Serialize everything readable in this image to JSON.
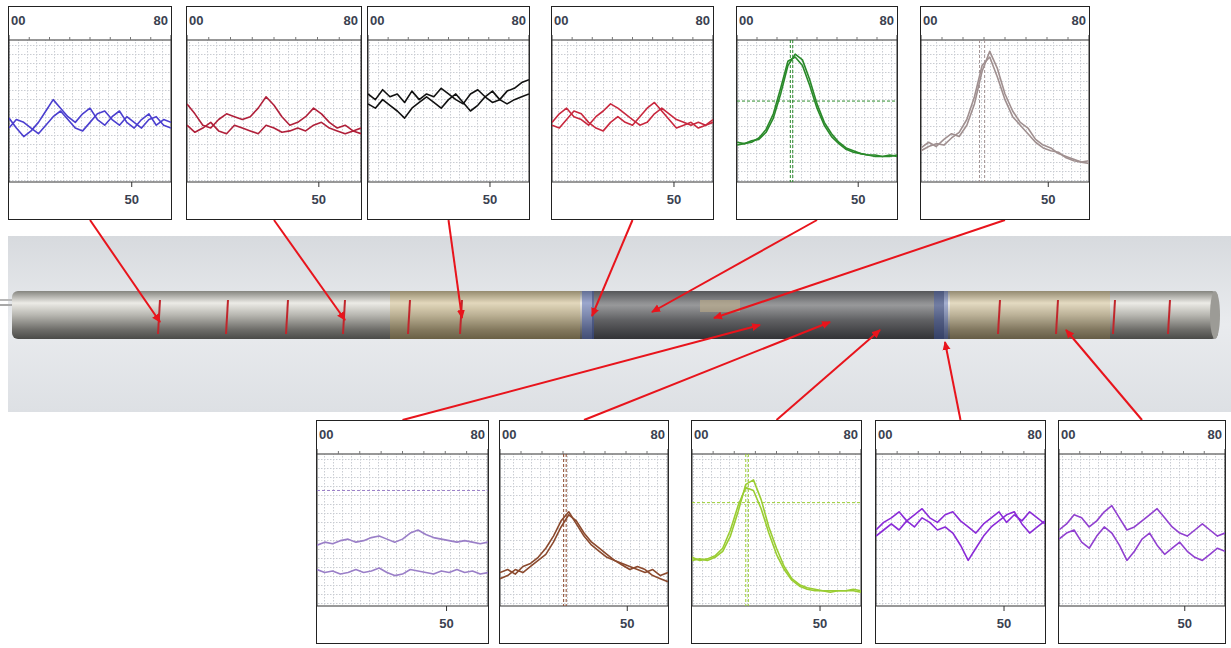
{
  "chart_data": [
    {
      "type": "line",
      "x": [
        0,
        3,
        6,
        9,
        12,
        15,
        18,
        21,
        24,
        27,
        30,
        33,
        36,
        39,
        42,
        45,
        48,
        51,
        54,
        57,
        60,
        63,
        66
      ],
      "xlim": [
        0,
        66
      ],
      "xticks": [
        50
      ],
      "x2lim": [
        0,
        80
      ],
      "x2ticks": [
        {
          "value": 0,
          "label": "00"
        },
        {
          "value": 80,
          "label": "80"
        }
      ],
      "ylim": [
        0,
        100
      ],
      "grid": true,
      "tick_labels": "x",
      "series": [
        {
          "color": "#4b3fcf",
          "values": [
            45,
            38,
            32,
            36,
            42,
            50,
            58,
            52,
            46,
            42,
            48,
            52,
            44,
            40,
            46,
            50,
            42,
            38,
            44,
            48,
            40,
            44,
            42
          ]
        },
        {
          "color": "#4b3fcf",
          "values": [
            38,
            44,
            42,
            38,
            34,
            40,
            46,
            50,
            44,
            38,
            36,
            42,
            48,
            50,
            44,
            40,
            46,
            42,
            38,
            44,
            46,
            40,
            38
          ]
        }
      ]
    },
    {
      "type": "line",
      "x": [
        0,
        3,
        6,
        9,
        12,
        15,
        18,
        21,
        24,
        27,
        30,
        33,
        36,
        39,
        42,
        45,
        48,
        51,
        54,
        57,
        60,
        63,
        66
      ],
      "xlim": [
        0,
        66
      ],
      "xticks": [
        50
      ],
      "x2lim": [
        0,
        80
      ],
      "x2ticks": [
        {
          "value": 0,
          "label": "00"
        },
        {
          "value": 80,
          "label": "80"
        }
      ],
      "ylim": [
        0,
        100
      ],
      "grid": true,
      "tick_labels": "x",
      "series": [
        {
          "color": "#b0203a",
          "values": [
            55,
            48,
            40,
            38,
            44,
            48,
            46,
            44,
            46,
            52,
            60,
            54,
            46,
            40,
            42,
            46,
            52,
            48,
            42,
            38,
            40,
            36,
            34
          ]
        },
        {
          "color": "#b0203a",
          "values": [
            40,
            35,
            38,
            42,
            36,
            34,
            40,
            38,
            36,
            34,
            40,
            38,
            35,
            36,
            38,
            36,
            40,
            42,
            38,
            36,
            34,
            36,
            38
          ]
        }
      ]
    },
    {
      "type": "line",
      "x": [
        0,
        3,
        6,
        9,
        12,
        15,
        18,
        21,
        24,
        27,
        30,
        33,
        36,
        39,
        42,
        45,
        48,
        51,
        54,
        57,
        60,
        63,
        66
      ],
      "xlim": [
        0,
        66
      ],
      "xticks": [
        50
      ],
      "x2lim": [
        0,
        80
      ],
      "x2ticks": [
        {
          "value": 0,
          "label": "00"
        },
        {
          "value": 80,
          "label": "80"
        }
      ],
      "ylim": [
        0,
        100
      ],
      "grid": true,
      "tick_labels": "x",
      "series": [
        {
          "color": "#111111",
          "values": [
            62,
            58,
            65,
            60,
            62,
            56,
            64,
            58,
            62,
            60,
            66,
            62,
            58,
            55,
            62,
            65,
            60,
            56,
            58,
            64,
            66,
            70,
            72
          ]
        },
        {
          "color": "#111111",
          "values": [
            55,
            52,
            58,
            54,
            50,
            45,
            52,
            56,
            60,
            56,
            52,
            58,
            62,
            56,
            50,
            54,
            60,
            64,
            58,
            55,
            58,
            60,
            62
          ]
        }
      ]
    },
    {
      "type": "line",
      "x": [
        0,
        3,
        6,
        9,
        12,
        15,
        18,
        21,
        24,
        27,
        30,
        33,
        36,
        39,
        42,
        45,
        48,
        51,
        54,
        57,
        60,
        63,
        66
      ],
      "xlim": [
        0,
        66
      ],
      "xticks": [
        50
      ],
      "x2lim": [
        0,
        80
      ],
      "x2ticks": [
        {
          "value": 0,
          "label": "00"
        },
        {
          "value": 80,
          "label": "80"
        }
      ],
      "ylim": [
        0,
        100
      ],
      "grid": true,
      "tick_labels": "x",
      "series": [
        {
          "color": "#c8283e",
          "values": [
            42,
            48,
            52,
            46,
            44,
            40,
            46,
            50,
            55,
            52,
            48,
            44,
            40,
            42,
            48,
            52,
            48,
            44,
            42,
            40,
            42,
            40,
            42
          ]
        },
        {
          "color": "#c8283e",
          "values": [
            40,
            38,
            44,
            50,
            48,
            42,
            38,
            36,
            42,
            46,
            42,
            40,
            46,
            52,
            56,
            50,
            44,
            38,
            40,
            42,
            38,
            40,
            44
          ]
        }
      ]
    },
    {
      "type": "line",
      "x": [
        0,
        3,
        6,
        9,
        12,
        15,
        18,
        21,
        24,
        27,
        30,
        33,
        36,
        39,
        42,
        45,
        48,
        51,
        54,
        57,
        60,
        63,
        66
      ],
      "xlim": [
        0,
        66
      ],
      "xticks": [
        50
      ],
      "x2lim": [
        0,
        80
      ],
      "x2ticks": [
        {
          "value": 0,
          "label": "00"
        },
        {
          "value": 80,
          "label": "80"
        }
      ],
      "ylim": [
        0,
        100
      ],
      "grid": true,
      "tick_labels": "x",
      "cursor_x": [
        22,
        23
      ],
      "cursor_y": [
        57
      ],
      "series": [
        {
          "color": "#2a8a2a",
          "values": [
            28,
            27,
            29,
            30,
            35,
            45,
            62,
            82,
            90,
            86,
            72,
            55,
            42,
            34,
            28,
            24,
            22,
            20,
            19,
            19,
            18,
            18,
            19
          ]
        },
        {
          "color": "#2a8a2a",
          "values": [
            26,
            27,
            28,
            31,
            37,
            48,
            66,
            85,
            88,
            82,
            68,
            52,
            40,
            32,
            27,
            23,
            21,
            20,
            19,
            18,
            18,
            19,
            18
          ]
        }
      ]
    },
    {
      "type": "line",
      "x": [
        0,
        3,
        6,
        9,
        12,
        15,
        18,
        21,
        24,
        27,
        30,
        33,
        36,
        39,
        42,
        45,
        48,
        51,
        54,
        57,
        60,
        63,
        66
      ],
      "xlim": [
        0,
        66
      ],
      "xticks": [
        50
      ],
      "x2lim": [
        0,
        80
      ],
      "x2ticks": [
        {
          "value": 0,
          "label": "00"
        },
        {
          "value": 80,
          "label": "80"
        }
      ],
      "ylim": [
        0,
        100
      ],
      "grid": true,
      "tick_labels": "x",
      "cursor_x": [
        23,
        25
      ],
      "series": [
        {
          "color": "#a09090",
          "values": [
            24,
            28,
            25,
            30,
            34,
            32,
            40,
            55,
            78,
            92,
            80,
            62,
            50,
            42,
            38,
            30,
            26,
            24,
            20,
            18,
            16,
            14,
            15
          ]
        },
        {
          "color": "#a09090",
          "values": [
            22,
            25,
            27,
            26,
            31,
            35,
            44,
            60,
            82,
            88,
            74,
            58,
            46,
            40,
            34,
            28,
            24,
            22,
            21,
            17,
            15,
            14,
            13
          ]
        }
      ]
    },
    {
      "type": "line",
      "x": [
        0,
        3,
        6,
        9,
        12,
        15,
        18,
        21,
        24,
        27,
        30,
        33,
        36,
        39,
        42,
        45,
        48,
        51,
        54,
        57,
        60,
        63,
        66
      ],
      "xlim": [
        0,
        66
      ],
      "xticks": [
        50
      ],
      "x2lim": [
        0,
        80
      ],
      "x2ticks": [
        {
          "value": 0,
          "label": "00"
        },
        {
          "value": 80,
          "label": "80"
        }
      ],
      "ylim": [
        0,
        100
      ],
      "grid": true,
      "tick_labels": "x",
      "cursor_y": [
        76
      ],
      "series": [
        {
          "color": "#9a7fc8",
          "values": [
            40,
            42,
            41,
            43,
            44,
            42,
            43,
            45,
            46,
            44,
            42,
            44,
            48,
            50,
            47,
            45,
            44,
            43,
            42,
            43,
            42,
            41,
            42
          ]
        },
        {
          "color": "#9a7fc8",
          "values": [
            24,
            22,
            23,
            21,
            22,
            24,
            22,
            23,
            25,
            22,
            20,
            21,
            24,
            23,
            22,
            21,
            23,
            22,
            24,
            22,
            23,
            21,
            22
          ]
        }
      ]
    },
    {
      "type": "line",
      "x": [
        0,
        3,
        6,
        9,
        12,
        15,
        18,
        21,
        24,
        27,
        30,
        33,
        36,
        39,
        42,
        45,
        48,
        51,
        54,
        57,
        60,
        63,
        66
      ],
      "xlim": [
        0,
        66
      ],
      "xticks": [
        50
      ],
      "x2lim": [
        0,
        80
      ],
      "x2ticks": [
        {
          "value": 0,
          "label": "00"
        },
        {
          "value": 80,
          "label": "80"
        }
      ],
      "ylim": [
        0,
        100
      ],
      "grid": true,
      "tick_labels": "x",
      "cursor_x": [
        25,
        26
      ],
      "series": [
        {
          "color": "#8b4a2e",
          "values": [
            18,
            20,
            24,
            22,
            26,
            30,
            34,
            42,
            52,
            60,
            56,
            48,
            42,
            38,
            34,
            30,
            28,
            26,
            24,
            22,
            24,
            20,
            22
          ]
        },
        {
          "color": "#8b4a2e",
          "values": [
            22,
            24,
            21,
            26,
            28,
            32,
            38,
            46,
            56,
            62,
            54,
            46,
            40,
            36,
            32,
            30,
            27,
            24,
            26,
            24,
            20,
            18,
            16
          ]
        }
      ]
    },
    {
      "type": "line",
      "x": [
        0,
        3,
        6,
        9,
        12,
        15,
        18,
        21,
        24,
        27,
        30,
        33,
        36,
        39,
        42,
        45,
        48,
        51,
        54,
        57,
        60,
        63,
        66
      ],
      "xlim": [
        0,
        66
      ],
      "xticks": [
        50
      ],
      "x2lim": [
        0,
        80
      ],
      "x2ticks": [
        {
          "value": 0,
          "label": "00"
        },
        {
          "value": 80,
          "label": "80"
        }
      ],
      "ylim": [
        0,
        100
      ],
      "grid": true,
      "tick_labels": "x",
      "cursor_x": [
        21,
        22
      ],
      "cursor_y": [
        68
      ],
      "series": [
        {
          "color": "#9acd32",
          "values": [
            30,
            31,
            30,
            32,
            36,
            46,
            62,
            80,
            83,
            70,
            52,
            38,
            26,
            18,
            14,
            12,
            11,
            10,
            10,
            10,
            10,
            11,
            10
          ]
        },
        {
          "color": "#9acd32",
          "values": [
            32,
            30,
            31,
            33,
            38,
            50,
            66,
            78,
            76,
            64,
            48,
            34,
            24,
            17,
            13,
            11,
            10,
            10,
            9,
            10,
            10,
            10,
            9
          ]
        }
      ]
    },
    {
      "type": "line",
      "x": [
        0,
        3,
        6,
        9,
        12,
        15,
        18,
        21,
        24,
        27,
        30,
        33,
        36,
        39,
        42,
        45,
        48,
        51,
        54,
        57,
        60,
        63,
        66
      ],
      "xlim": [
        0,
        66
      ],
      "xticks": [
        50
      ],
      "x2lim": [
        0,
        80
      ],
      "x2ticks": [
        {
          "value": 0,
          "label": "00"
        },
        {
          "value": 80,
          "label": "80"
        }
      ],
      "ylim": [
        0,
        100
      ],
      "grid": true,
      "tick_labels": "x",
      "series": [
        {
          "color": "#8a2bd8",
          "values": [
            50,
            55,
            58,
            62,
            56,
            60,
            64,
            58,
            55,
            60,
            62,
            56,
            52,
            48,
            54,
            58,
            62,
            55,
            60,
            56,
            62,
            58,
            54
          ]
        },
        {
          "color": "#8a2bd8",
          "values": [
            46,
            50,
            54,
            50,
            56,
            52,
            58,
            55,
            50,
            52,
            48,
            40,
            30,
            38,
            46,
            52,
            56,
            60,
            62,
            54,
            48,
            52,
            56
          ]
        }
      ]
    },
    {
      "type": "line",
      "x": [
        0,
        3,
        6,
        9,
        12,
        15,
        18,
        21,
        24,
        27,
        30,
        33,
        36,
        39,
        42,
        45,
        48,
        51,
        54,
        57,
        60,
        63,
        66
      ],
      "xlim": [
        0,
        66
      ],
      "xticks": [
        50
      ],
      "x2lim": [
        0,
        80
      ],
      "x2ticks": [
        {
          "value": 0,
          "label": "00"
        },
        {
          "value": 80,
          "label": "80"
        }
      ],
      "ylim": [
        0,
        100
      ],
      "grid": true,
      "tick_labels": "x",
      "series": [
        {
          "color": "#9040d0",
          "values": [
            50,
            54,
            60,
            58,
            52,
            56,
            62,
            66,
            58,
            50,
            52,
            56,
            60,
            64,
            58,
            52,
            48,
            46,
            50,
            54,
            50,
            46,
            48
          ]
        },
        {
          "color": "#9040d0",
          "values": [
            44,
            48,
            50,
            42,
            38,
            46,
            52,
            48,
            40,
            30,
            36,
            44,
            48,
            40,
            34,
            38,
            42,
            36,
            32,
            30,
            34,
            38,
            36
          ]
        }
      ]
    }
  ]
}
